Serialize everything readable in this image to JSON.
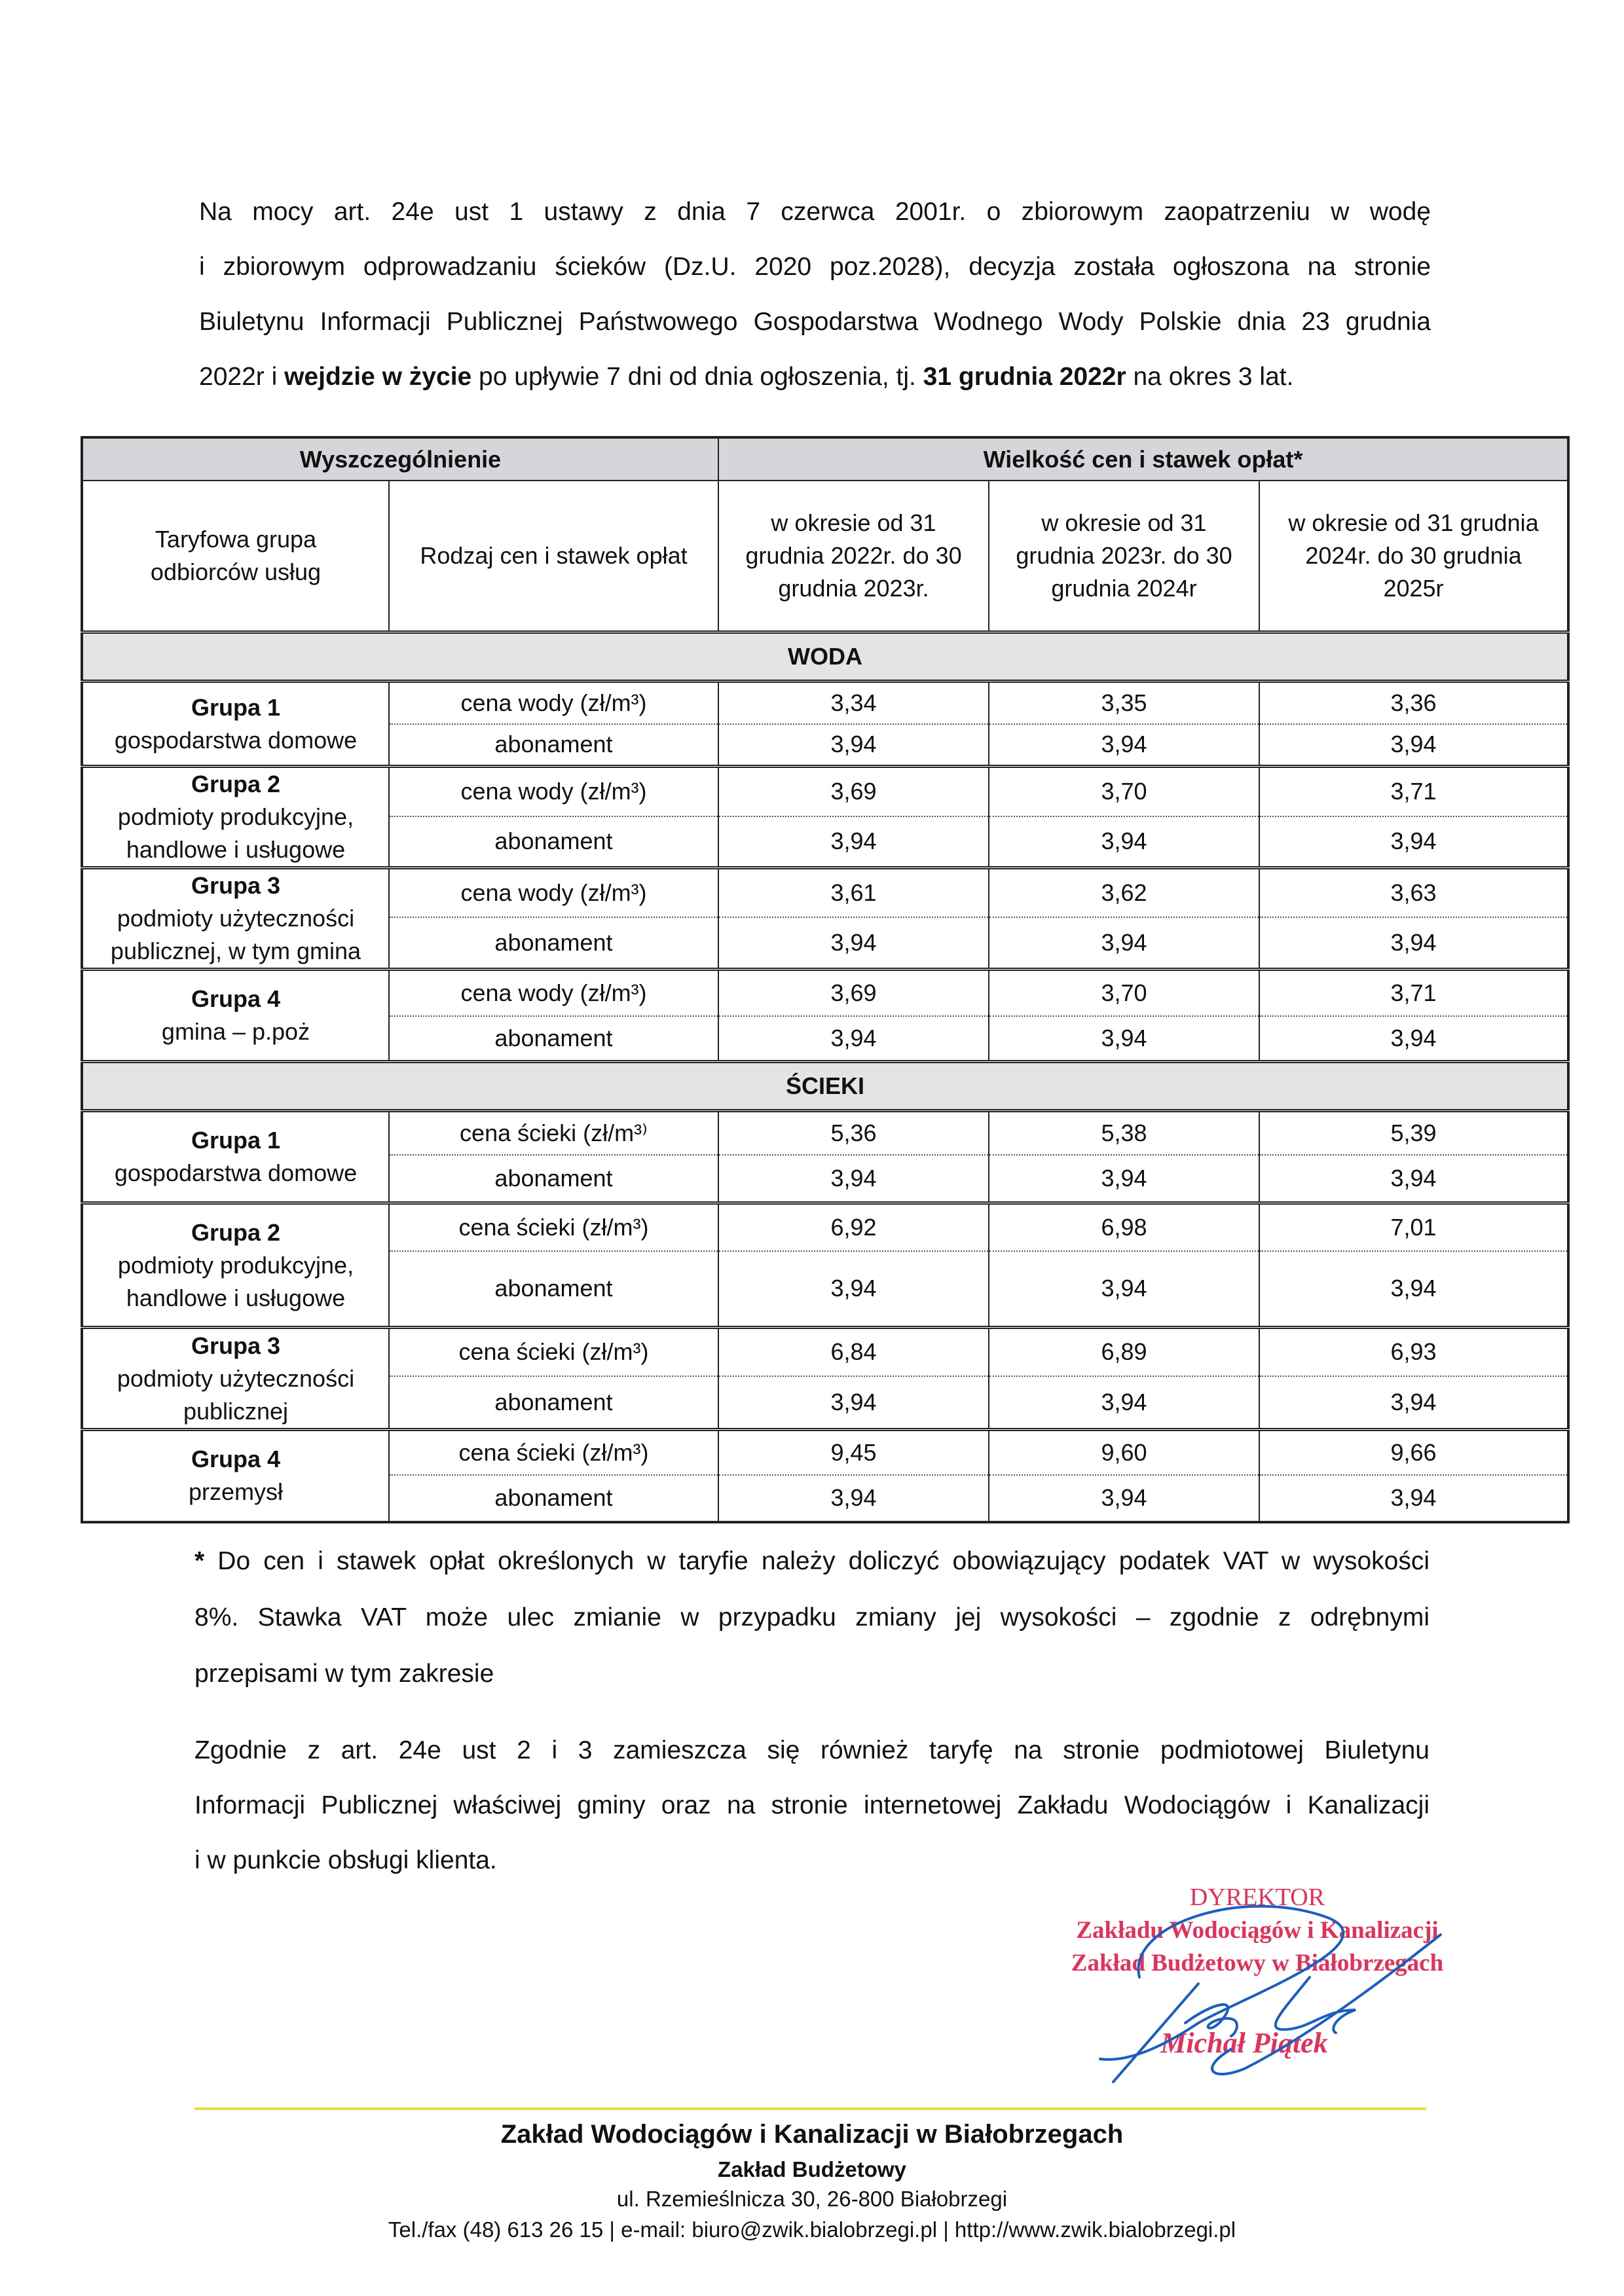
{
  "intro": {
    "lines": [
      "Na mocy art. 24e ust 1 ustawy z dnia 7 czerwca 2001r. o zbiorowym zaopatrzeniu w wodę",
      "i zbiorowym odprowadzaniu ścieków (Dz.U. 2020 poz.2028), decyzja została ogłoszona na stronie",
      "Biuletynu Informacji Publicznej Państwowego Gospodarstwa Wodnego Wody Polskie dnia 23 grudnia"
    ],
    "last_line": {
      "a": "2022r i ",
      "b": "wejdzie w życie",
      "c": " po upływie 7 dni od dnia ogłoszenia, tj. ",
      "d": "31 grudnia 2022r",
      "e": " na okres 3 lat."
    }
  },
  "table": {
    "header_left": "Wyszczególnienie",
    "header_right": "Wielkość cen i stawek opłat*",
    "col_group": "Taryfowa grupa odbiorców usług",
    "col_type": "Rodzaj cen i stawek opłat",
    "periods": [
      "w okresie od 31 grudnia 2022r. do 30 grudnia 2023r.",
      "w okresie od 31 grudnia 2023r. do 30 grudnia 2024r",
      "w okresie od 31 grudnia 2024r. do 30 grudnia 2025r"
    ],
    "sections": [
      {
        "title": "WODA",
        "groups": [
          {
            "name": "Grupa 1",
            "desc": "gospodarstwa domowe",
            "rows": [
              {
                "label": "cena wody (zł/m³)",
                "values": [
                  "3,34",
                  "3,35",
                  "3,36"
                ]
              },
              {
                "label": "abonament",
                "values": [
                  "3,94",
                  "3,94",
                  "3,94"
                ]
              }
            ]
          },
          {
            "name": "Grupa 2",
            "desc": "podmioty produkcyjne, handlowe i usługowe",
            "rows": [
              {
                "label": "cena wody (zł/m³)",
                "values": [
                  "3,69",
                  "3,70",
                  "3,71"
                ]
              },
              {
                "label": "abonament",
                "values": [
                  "3,94",
                  "3,94",
                  "3,94"
                ]
              }
            ]
          },
          {
            "name": "Grupa 3",
            "desc": "podmioty użyteczności publicznej, w tym gmina",
            "rows": [
              {
                "label": "cena wody (zł/m³)",
                "values": [
                  "3,61",
                  "3,62",
                  "3,63"
                ]
              },
              {
                "label": "abonament",
                "values": [
                  "3,94",
                  "3,94",
                  "3,94"
                ]
              }
            ]
          },
          {
            "name": "Grupa 4",
            "desc": "gmina – p.poż",
            "rows": [
              {
                "label": "cena wody (zł/m³)",
                "values": [
                  "3,69",
                  "3,70",
                  "3,71"
                ]
              },
              {
                "label": "abonament",
                "values": [
                  "3,94",
                  "3,94",
                  "3,94"
                ]
              }
            ]
          }
        ]
      },
      {
        "title": "ŚCIEKI",
        "groups": [
          {
            "name": "Grupa 1",
            "desc": "gospodarstwa domowe",
            "rows": [
              {
                "label": "cena ścieki (zł/m³⁾",
                "values": [
                  "5,36",
                  "5,38",
                  "5,39"
                ]
              },
              {
                "label": "abonament",
                "values": [
                  "3,94",
                  "3,94",
                  "3,94"
                ]
              }
            ]
          },
          {
            "name": "Grupa 2",
            "desc": "podmioty produkcyjne, handlowe i usługowe",
            "rows": [
              {
                "label": "cena ścieki (zł/m³)",
                "values": [
                  "6,92",
                  "6,98",
                  "7,01"
                ]
              },
              {
                "label": "abonament",
                "values": [
                  "3,94",
                  "3,94",
                  "3,94"
                ]
              }
            ]
          },
          {
            "name": "Grupa 3",
            "desc": "podmioty użyteczności publicznej",
            "rows": [
              {
                "label": "cena ścieki (zł/m³)",
                "values": [
                  "6,84",
                  "6,89",
                  "6,93"
                ]
              },
              {
                "label": "abonament",
                "values": [
                  "3,94",
                  "3,94",
                  "3,94"
                ]
              }
            ]
          },
          {
            "name": "Grupa 4",
            "desc": "przemysł",
            "rows": [
              {
                "label": "cena ścieki (zł/m³)",
                "values": [
                  "9,45",
                  "9,60",
                  "9,66"
                ]
              },
              {
                "label": "abonament",
                "values": [
                  "3,94",
                  "3,94",
                  "3,94"
                ]
              }
            ]
          }
        ]
      }
    ]
  },
  "notes": {
    "star": "*",
    "lines": [
      " Do cen i stawek opłat określonych w taryfie należy doliczyć obowiązujący podatek VAT w wysokości",
      "8%. Stawka VAT może ulec zmianie w przypadku zmiany jej wysokości – zgodnie z odrębnymi",
      "przepisami w tym zakresie"
    ]
  },
  "publication": {
    "lines": [
      "Zgodnie z art. 24e ust 2 i 3 zamieszcza się również taryfę na stronie podmiotowej Biuletynu",
      "Informacji Publicznej właściwej gminy oraz na stronie internetowej Zakładu Wodociągów i Kanalizacji",
      "i w punkcie obsługi klienta."
    ]
  },
  "stamp": {
    "title": "DYREKTOR",
    "line1": "Zakładu Wodociągów i Kanalizacji",
    "line2": "Zakład Budżetowy w Białobrzegach",
    "name": "Michał Piątek",
    "stamp_color": "#e0325a",
    "signature_color": "#1a5fc0"
  },
  "footer": {
    "company": "Zakład Wodociągów i Kanalizacji w Białobrzegach",
    "subtitle": "Zakład Budżetowy",
    "address": "ul. Rzemieślnicza 30, 26-800 Białobrzegi",
    "contact": "Tel./fax (48) 613 26 15 | e-mail: biuro@zwik.bialobrzegi.pl | http://www.zwik.bialobrzegi.pl",
    "rule_color": "#e8d84a"
  }
}
